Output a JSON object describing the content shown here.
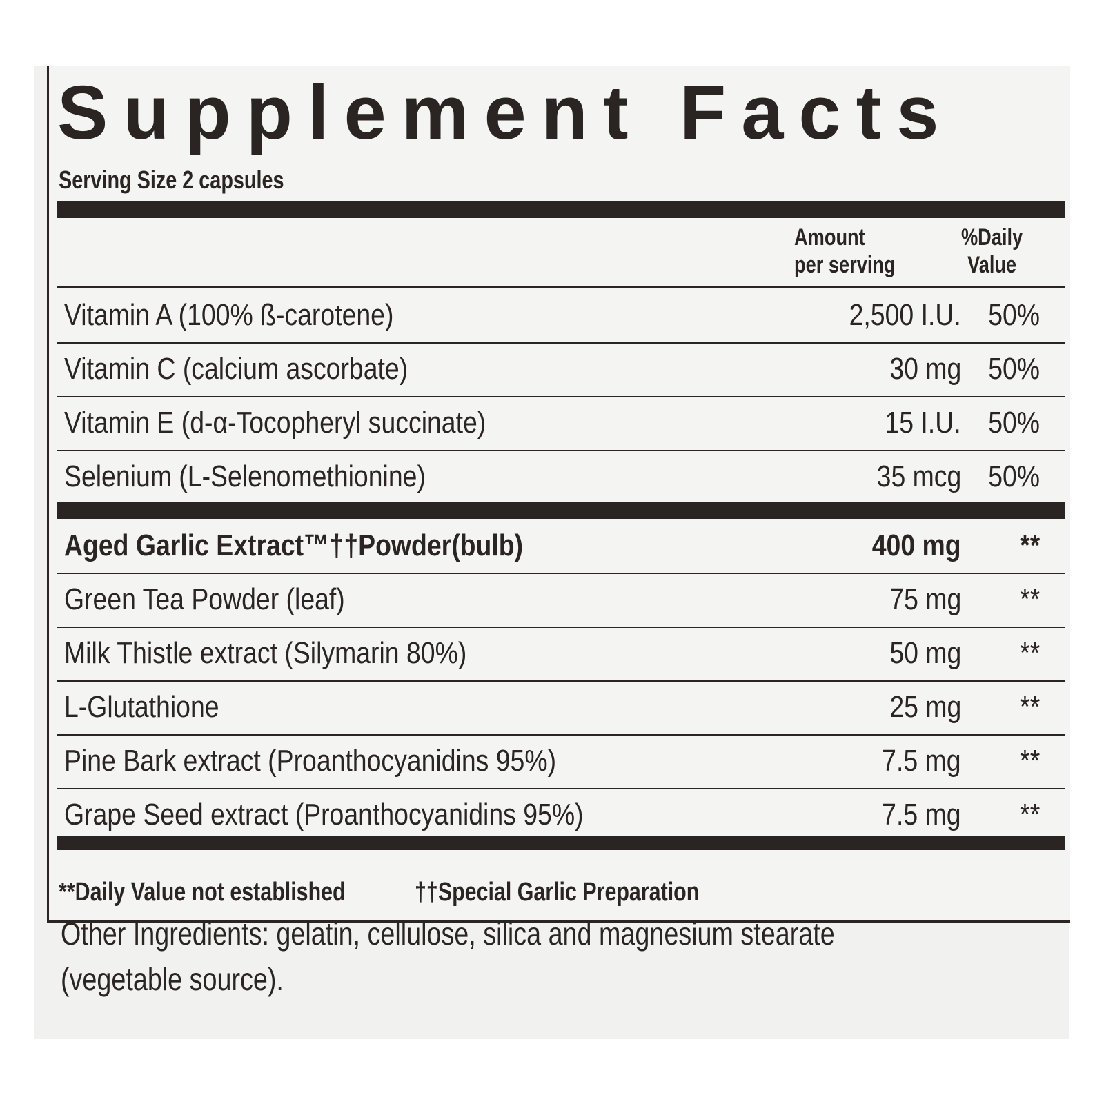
{
  "title": "Supplement Facts",
  "serving_size": "Serving Size 2 capsules",
  "header": {
    "amount": [
      "Amount",
      "per serving"
    ],
    "daily_value": [
      "%Daily",
      "Value"
    ]
  },
  "rows": [
    [
      "Vitamin A (100% ß-carotene)",
      "2,500 I.U.",
      "50%"
    ],
    [
      "Vitamin C (calcium ascorbate)",
      "30 mg",
      "50%"
    ],
    [
      "Vitamin E (d-α-Tocopheryl succinate)",
      "15 I.U.",
      "50%"
    ],
    [
      "Selenium (L-Selenomethionine)",
      "35 mcg",
      "50%"
    ]
  ],
  "rows2": [
    [
      "Aged Garlic Extract™††Powder(bulb)",
      "400 mg",
      "**"
    ],
    [
      "Green Tea Powder (leaf)",
      "75 mg",
      "**"
    ],
    [
      "Milk Thistle extract (Silymarin 80%)",
      "50 mg",
      "**"
    ],
    [
      "L-Glutathione",
      "25 mg",
      "**"
    ],
    [
      "Pine Bark extract (Proanthocyanidins 95%)",
      "7.5 mg",
      "**"
    ],
    [
      "Grape Seed extract (Proanthocyanidins 95%)",
      "7.5 mg",
      "**"
    ]
  ],
  "footnotes": [
    "**Daily Value not established",
    "††Special Garlic Preparation"
  ],
  "other_ingredients": [
    "Other Ingredients: gelatin, cellulose, silica and magnesium stearate",
    "(vegetable source)."
  ]
}
